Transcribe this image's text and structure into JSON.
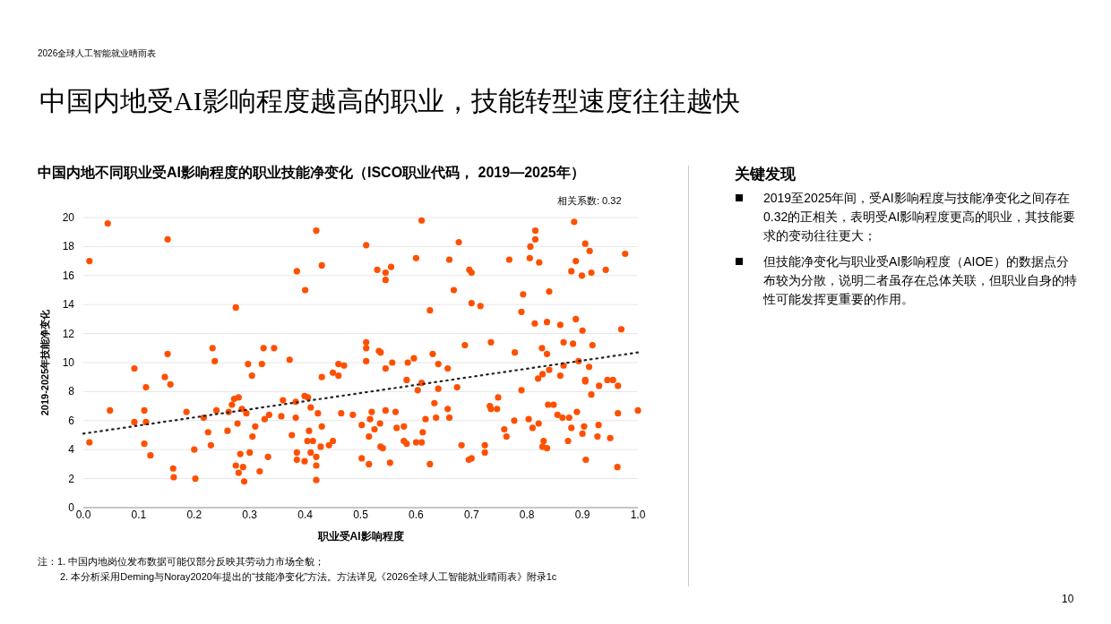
{
  "chart_data": [
    {
      "type": "scatter",
      "title": "中国内地受AI影响程度越高的职业，技能转型速度往往越快",
      "subtitle": "中国内地不同职业受AI影响程度的职业技能净变化（ISCO职业代码， 2019—2025年）",
      "xlabel": "职业受AI影响程度",
      "ylabel": "2019-2025年技能净变化",
      "annotations": [
        "2026全球人工智能就业晴雨表",
        "相关系数: 0.32",
        "注：1. 中国内地岗位发布数据可能仅部分反映其劳动力市场全貌；",
        "2. 本分析采用Deming与Noray2020年提出的“技能净变化”方法。方法详见《2026全球人工智能就业晴雨表》附录1c",
        "10"
      ],
      "xlim": [
        0,
        1
      ],
      "ylim": [
        0,
        20
      ],
      "xticks": [
        {
          "value": 0,
          "label": "0.0"
        },
        {
          "value": 0.1,
          "label": "0.1"
        },
        {
          "value": 0.2,
          "label": "0.2"
        },
        {
          "value": 0.3,
          "label": "0.3"
        },
        {
          "value": 0.4,
          "label": "0.4"
        },
        {
          "value": 0.5,
          "label": "0.5"
        },
        {
          "value": 0.6,
          "label": "0.6"
        },
        {
          "value": 0.7,
          "label": "0.7"
        },
        {
          "value": 0.8,
          "label": "0.8"
        },
        {
          "value": 0.9,
          "label": "0.9"
        },
        {
          "value": 1,
          "label": "1.0"
        }
      ],
      "yticks": [
        0,
        2,
        4,
        6,
        8,
        10,
        12,
        14,
        16,
        18,
        20
      ],
      "grid": "y",
      "marker": "circle",
      "series": [
        {
          "type": "scatter",
          "color": "#fe5000",
          "x": [
            0.011,
            0.044,
            0.152,
            0.42,
            0.385,
            0.43,
            0.4,
            0.61,
            0.51,
            0.53,
            0.545,
            0.555,
            0.545,
            0.6,
            0.66,
            0.677,
            0.696,
            0.7,
            0.668,
            0.7,
            0.716,
            0.625,
            0.768,
            0.793,
            0.806,
            0.815,
            0.815,
            0.805,
            0.822,
            0.84,
            0.88,
            0.885,
            0.888,
            0.905,
            0.913,
            0.899,
            0.916,
            0.942,
            0.977,
            0.79,
            0.836,
            0.814,
            0.86,
            0.888,
            0.866,
            0.883,
            0.9,
            0.918,
            0.97,
            0.827,
            0.836,
            0.778,
            0.735,
            0.688,
            0.657,
            0.64,
            0.674,
            0.596,
            0.63,
            0.536,
            0.51,
            0.51,
            0.533,
            0.51,
            0.557,
            0.545,
            0.585,
            0.583,
            0.603,
            0.61,
            0.64,
            0.092,
            0.152,
            0.147,
            0.157,
            0.113,
            0.233,
            0.237,
            0.275,
            0.325,
            0.344,
            0.322,
            0.297,
            0.304,
            0.372,
            0.43,
            0.46,
            0.47,
            0.45,
            0.46,
            0.011,
            0.048,
            0.092,
            0.11,
            0.113,
            0.11,
            0.121,
            0.162,
            0.163,
            0.186,
            0.2,
            0.202,
            0.217,
            0.23,
            0.24,
            0.225,
            0.262,
            0.268,
            0.272,
            0.28,
            0.286,
            0.294,
            0.278,
            0.26,
            0.275,
            0.28,
            0.288,
            0.283,
            0.3,
            0.305,
            0.333,
            0.318,
            0.29,
            0.327,
            0.335,
            0.31,
            0.357,
            0.36,
            0.383,
            0.385,
            0.404,
            0.41,
            0.414,
            0.407,
            0.376,
            0.385,
            0.399,
            0.42,
            0.42,
            0.42,
            0.428,
            0.443,
            0.43,
            0.423,
            0.41,
            0.399,
            0.405,
            0.383,
            0.45,
            0.465,
            0.486,
            0.502,
            0.502,
            0.515,
            0.52,
            0.517,
            0.515,
            0.525,
            0.535,
            0.536,
            0.54,
            0.553,
            0.545,
            0.563,
            0.565,
            0.578,
            0.578,
            0.583,
            0.6,
            0.61,
            0.625,
            0.612,
            0.617,
            0.636,
            0.657,
            0.66,
            0.633,
            0.682,
            0.695,
            0.7,
            0.724,
            0.724,
            0.733,
            0.735,
            0.746,
            0.748,
            0.759,
            0.763,
            0.777,
            0.803,
            0.81,
            0.821,
            0.83,
            0.828,
            0.836,
            0.855,
            0.864,
            0.838,
            0.848,
            0.876,
            0.88,
            0.874,
            0.9,
            0.903,
            0.906,
            0.929,
            0.927,
            0.95,
            0.964,
            0.963,
            1.0,
            0.79,
            0.82,
            0.828,
            0.84,
            0.86,
            0.866,
            0.893,
            0.912,
            0.905,
            0.93,
            0.945,
            0.964,
            0.916,
            0.955,
            0.89,
            0.905
          ],
          "values": [
            17.0,
            19.6,
            18.5,
            19.1,
            16.3,
            16.7,
            15.0,
            19.8,
            18.1,
            16.4,
            16.2,
            16.6,
            15.7,
            17.2,
            17.1,
            18.3,
            16.4,
            16.2,
            15.0,
            14.1,
            13.9,
            13.6,
            17.1,
            14.7,
            18.0,
            18.5,
            19.1,
            17.2,
            16.9,
            14.9,
            16.3,
            19.7,
            17.0,
            18.2,
            17.7,
            16.0,
            16.2,
            16.4,
            17.5,
            13.5,
            12.8,
            12.7,
            12.6,
            13.0,
            11.4,
            11.3,
            12.2,
            11.2,
            12.3,
            11.0,
            10.6,
            10.7,
            11.4,
            11.2,
            9.6,
            9.9,
            8.3,
            10.3,
            10.6,
            10.7,
            11.4,
            11.0,
            10.8,
            10.1,
            10.0,
            9.6,
            10.0,
            8.8,
            8.1,
            8.6,
            8.2,
            9.6,
            10.6,
            9.0,
            8.5,
            8.3,
            11.0,
            10.1,
            13.8,
            11.0,
            11.0,
            9.9,
            9.9,
            9.1,
            10.2,
            9.0,
            9.9,
            9.8,
            9.3,
            9.1,
            4.5,
            6.7,
            5.9,
            6.7,
            5.9,
            4.4,
            3.6,
            2.7,
            2.1,
            6.6,
            4.0,
            2.0,
            6.2,
            4.3,
            6.7,
            5.2,
            6.6,
            7.1,
            7.5,
            7.6,
            6.8,
            6.5,
            5.8,
            5.3,
            2.9,
            2.4,
            2.8,
            3.7,
            3.8,
            4.9,
            3.5,
            2.5,
            1.8,
            6.1,
            6.4,
            5.6,
            6.3,
            7.4,
            6.2,
            3.8,
            4.6,
            3.8,
            4.6,
            5.3,
            5.0,
            3.3,
            3.2,
            1.9,
            2.9,
            3.5,
            4.2,
            4.3,
            5.6,
            6.5,
            6.9,
            7.7,
            7.6,
            7.3,
            4.6,
            6.5,
            6.4,
            5.7,
            3.4,
            3.0,
            6.6,
            6.1,
            4.9,
            5.4,
            5.8,
            4.2,
            4.1,
            3.1,
            6.7,
            6.6,
            5.5,
            5.6,
            4.6,
            4.4,
            4.5,
            4.5,
            3.0,
            5.2,
            6.1,
            6.2,
            6.8,
            6.2,
            7.2,
            4.3,
            3.3,
            3.4,
            4.3,
            3.8,
            7.0,
            6.8,
            6.8,
            7.6,
            5.4,
            4.9,
            6.0,
            6.1,
            5.5,
            5.8,
            4.6,
            4.2,
            4.1,
            6.4,
            6.2,
            7.1,
            7.1,
            6.2,
            5.5,
            4.6,
            5.1,
            5.6,
            3.3,
            5.7,
            4.9,
            4.8,
            6.5,
            2.8,
            6.7,
            8.1,
            8.9,
            9.2,
            9.5,
            9.1,
            9.8,
            10.1,
            9.7,
            8.8,
            8.4,
            8.8,
            8.4,
            7.8,
            8.8,
            6.6,
            8.7
          ]
        },
        {
          "type": "line",
          "color": "#222222",
          "line_style": "dotted",
          "marker": "none",
          "x": [
            0,
            1
          ],
          "values": [
            5.1,
            10.7
          ]
        }
      ]
    },
    {
      "type": "other",
      "title": "关键发现",
      "annotations": [
        "2019至2025年间，受AI影响程度与技能净变化之间存在0.32的正相关，表明受AI影响程度更高的职业，其技能要求的变动往往更大；",
        "但技能净变化与职业受AI影响程度（AIOE）的数据点分布较为分散，说明二者虽存在总体关联，但职业自身的特性可能发挥更重要的作用。"
      ]
    }
  ]
}
